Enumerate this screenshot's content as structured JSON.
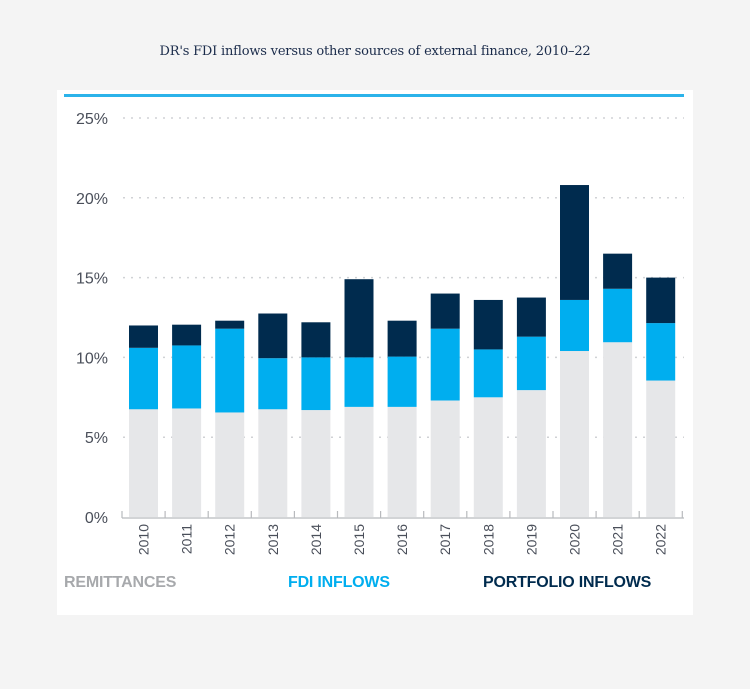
{
  "title": "DR's FDI inflows versus other sources of external finance, 2010–22",
  "colors": {
    "remittances": "#e6e7e9",
    "fdi": "#00aeef",
    "portfolio": "#002b4e",
    "accent_line": "#2bb3ea",
    "remittances_label": "#a7a9ac"
  },
  "legend": [
    {
      "label": "REMITTANCES",
      "key": "remittances"
    },
    {
      "label": "FDI INFLOWS",
      "key": "fdi"
    },
    {
      "label": "PORTFOLIO INFLOWS",
      "key": "portfolio"
    }
  ],
  "chart_data": {
    "type": "bar",
    "stacked": true,
    "title": "DR's FDI inflows versus other sources of external finance, 2010–22",
    "xlabel": "",
    "ylabel": "",
    "ylim": [
      0,
      25
    ],
    "yticks": [
      0,
      5,
      10,
      15,
      20,
      25
    ],
    "ytick_labels": [
      "0%",
      "5%",
      "10%",
      "15%",
      "20%",
      "25%"
    ],
    "grid": "horizontal-dotted",
    "legend_position": "bottom",
    "categories": [
      "2010",
      "2011",
      "2012",
      "2013",
      "2014",
      "2015",
      "2016",
      "2017",
      "2018",
      "2019",
      "2020",
      "2021",
      "2022"
    ],
    "series": [
      {
        "name": "Remittances",
        "values": [
          6.75,
          6.8,
          6.55,
          6.75,
          6.7,
          6.9,
          6.9,
          7.3,
          7.5,
          7.95,
          10.4,
          10.95,
          8.55
        ]
      },
      {
        "name": "FDI inflows",
        "values": [
          3.85,
          3.95,
          5.25,
          3.2,
          3.3,
          3.1,
          3.15,
          4.5,
          3.0,
          3.35,
          3.2,
          3.35,
          3.6
        ]
      },
      {
        "name": "Portfolio inflows",
        "values": [
          1.4,
          1.3,
          0.5,
          2.8,
          2.2,
          4.9,
          2.25,
          2.2,
          3.1,
          2.45,
          7.2,
          2.2,
          2.85
        ]
      }
    ]
  }
}
